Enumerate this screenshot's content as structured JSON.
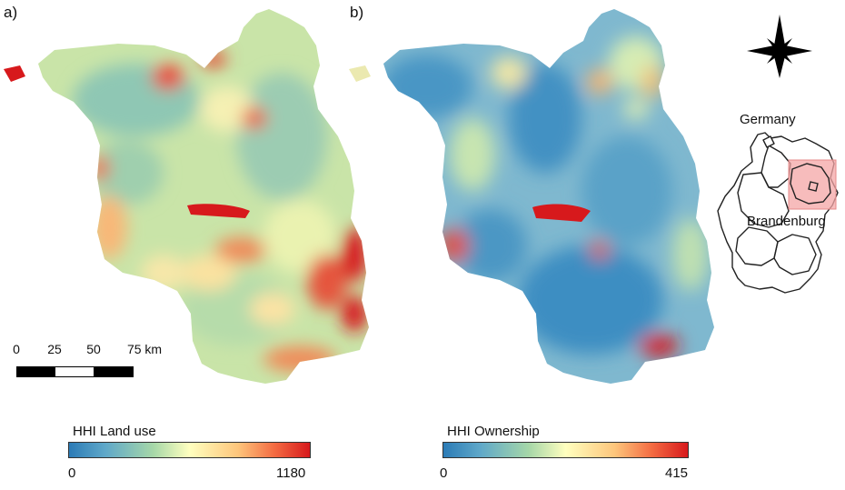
{
  "panels": {
    "a": {
      "label": "a)"
    },
    "b": {
      "label": "b)"
    }
  },
  "scalebar": {
    "ticks": [
      "0",
      "25",
      "50",
      "75 km"
    ]
  },
  "legends": {
    "land_use": {
      "title": "HHI Land use",
      "min": "0",
      "max": "1180"
    },
    "ownership": {
      "title": "HHI Ownership",
      "min": "0",
      "max": "415"
    }
  },
  "inset": {
    "country_label": "Germany",
    "region_label": "Brandenburg",
    "highlight_color": "#f4a6a6"
  },
  "colormap": [
    "#2c7bb6",
    "#abd9e9",
    "#ffffbf",
    "#fdae61",
    "#d7191c"
  ],
  "icons": {
    "north": "compass-star-icon"
  }
}
